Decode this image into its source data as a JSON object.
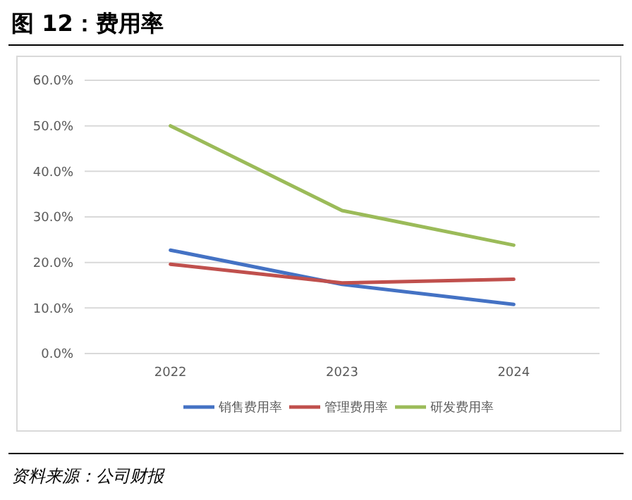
{
  "chart_data": {
    "type": "line",
    "title": "图 12：费用率",
    "categories": [
      "2022",
      "2023",
      "2024"
    ],
    "series": [
      {
        "name": "销售费用率",
        "color": "#4472c4",
        "values": [
          22.7,
          15.2,
          10.8
        ]
      },
      {
        "name": "管理费用率",
        "color": "#c0504d",
        "values": [
          19.6,
          15.5,
          16.3
        ]
      },
      {
        "name": "研发费用率",
        "color": "#9bbb59",
        "values": [
          50.0,
          31.4,
          23.8
        ]
      }
    ],
    "ylim": [
      0,
      60
    ],
    "yticks": [
      {
        "value": 0,
        "label": "0.0%"
      },
      {
        "value": 10,
        "label": "10.0%"
      },
      {
        "value": 20,
        "label": "20.0%"
      },
      {
        "value": 30,
        "label": "30.0%"
      },
      {
        "value": 40,
        "label": "40.0%"
      },
      {
        "value": 50,
        "label": "50.0%"
      },
      {
        "value": 60,
        "label": "60.0%"
      }
    ],
    "grid": "y",
    "legend": "bottom",
    "marker": "none",
    "line_style": "solid",
    "annotations": [
      "资料来源：公司财报"
    ]
  }
}
